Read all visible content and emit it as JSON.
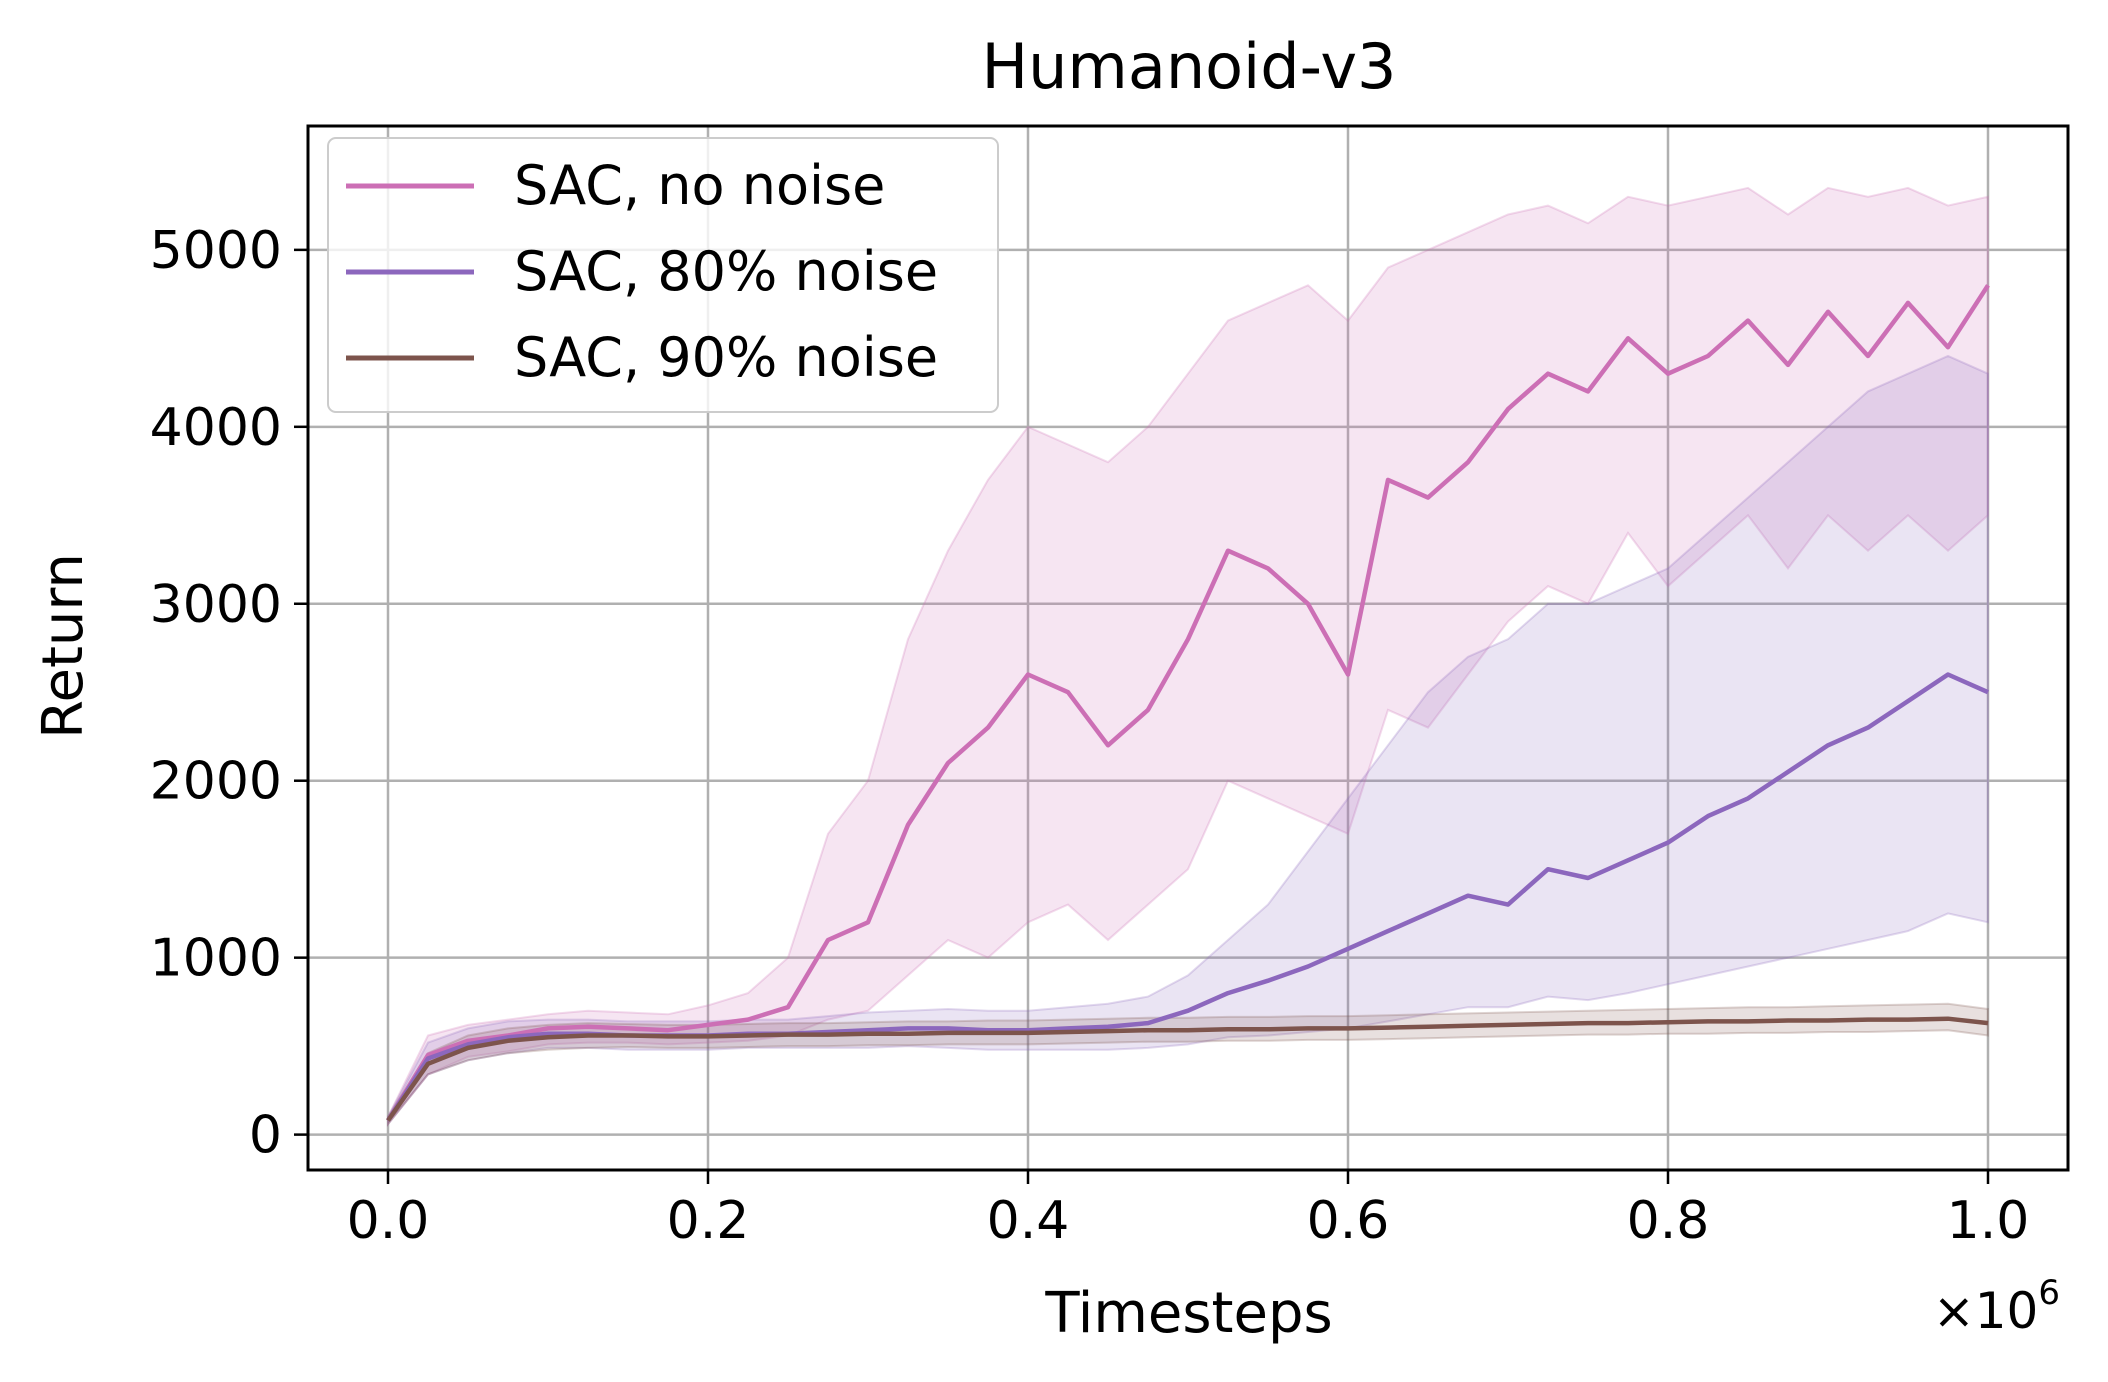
{
  "chart_data": {
    "type": "line",
    "title": "Humanoid-v3",
    "xlabel": "Timesteps",
    "ylabel": "Return",
    "x_scale_label": "×10",
    "x_scale_exponent": "6",
    "xlim": [
      -0.05,
      1.05
    ],
    "ylim": [
      -200,
      5700
    ],
    "xticks": [
      0.0,
      0.2,
      0.4,
      0.6,
      0.8,
      1.0
    ],
    "xtick_labels": [
      "0.0",
      "0.2",
      "0.4",
      "0.6",
      "0.8",
      "1.0"
    ],
    "yticks": [
      0,
      1000,
      2000,
      3000,
      4000,
      5000
    ],
    "ytick_labels": [
      "0",
      "1000",
      "2000",
      "3000",
      "4000",
      "5000"
    ],
    "grid": true,
    "legend_position": "top-left",
    "series": [
      {
        "name": "SAC, no noise",
        "color": "#cc6fb5",
        "x": [
          0.0,
          0.025,
          0.05,
          0.075,
          0.1,
          0.125,
          0.15,
          0.175,
          0.2,
          0.225,
          0.25,
          0.275,
          0.3,
          0.325,
          0.35,
          0.375,
          0.4,
          0.425,
          0.45,
          0.475,
          0.5,
          0.525,
          0.55,
          0.575,
          0.6,
          0.625,
          0.65,
          0.675,
          0.7,
          0.725,
          0.75,
          0.775,
          0.8,
          0.825,
          0.85,
          0.875,
          0.9,
          0.925,
          0.95,
          0.975,
          1.0
        ],
        "mean": [
          80,
          450,
          530,
          560,
          600,
          610,
          600,
          590,
          620,
          650,
          720,
          1100,
          1200,
          1750,
          2100,
          2300,
          2600,
          2500,
          2200,
          2400,
          2800,
          3300,
          3200,
          3000,
          2600,
          3700,
          3600,
          3800,
          4100,
          4300,
          4200,
          4500,
          4300,
          4400,
          4600,
          4350,
          4650,
          4400,
          4700,
          4450,
          4800
        ],
        "upper": [
          100,
          560,
          620,
          650,
          680,
          700,
          690,
          680,
          730,
          800,
          1000,
          1700,
          2000,
          2800,
          3300,
          3700,
          4000,
          3900,
          3800,
          4000,
          4300,
          4600,
          4700,
          4800,
          4600,
          4900,
          5000,
          5100,
          5200,
          5250,
          5150,
          5300,
          5250,
          5300,
          5350,
          5200,
          5350,
          5300,
          5350,
          5250,
          5300
        ],
        "lower": [
          60,
          340,
          440,
          470,
          510,
          520,
          520,
          510,
          520,
          530,
          560,
          650,
          700,
          900,
          1100,
          1000,
          1200,
          1300,
          1100,
          1300,
          1500,
          2000,
          1900,
          1800,
          1700,
          2400,
          2300,
          2600,
          2900,
          3100,
          3000,
          3400,
          3100,
          3300,
          3500,
          3200,
          3500,
          3300,
          3500,
          3300,
          3500
        ]
      },
      {
        "name": "SAC, 80% noise",
        "color": "#8c67bd",
        "x": [
          0.0,
          0.025,
          0.05,
          0.075,
          0.1,
          0.125,
          0.15,
          0.175,
          0.2,
          0.225,
          0.25,
          0.275,
          0.3,
          0.325,
          0.35,
          0.375,
          0.4,
          0.425,
          0.45,
          0.475,
          0.5,
          0.525,
          0.55,
          0.575,
          0.6,
          0.625,
          0.65,
          0.675,
          0.7,
          0.725,
          0.75,
          0.775,
          0.8,
          0.825,
          0.85,
          0.875,
          0.9,
          0.925,
          0.95,
          0.975,
          1.0
        ],
        "mean": [
          80,
          430,
          510,
          550,
          570,
          570,
          560,
          560,
          560,
          570,
          570,
          580,
          590,
          600,
          600,
          590,
          590,
          600,
          610,
          630,
          700,
          800,
          870,
          950,
          1050,
          1150,
          1250,
          1350,
          1300,
          1500,
          1450,
          1550,
          1650,
          1800,
          1900,
          2050,
          2200,
          2300,
          2450,
          2600,
          2500
        ],
        "upper": [
          100,
          520,
          600,
          640,
          650,
          650,
          640,
          640,
          640,
          650,
          650,
          670,
          690,
          700,
          710,
          700,
          700,
          720,
          740,
          780,
          900,
          1100,
          1300,
          1600,
          1900,
          2200,
          2500,
          2700,
          2800,
          3000,
          3000,
          3100,
          3200,
          3400,
          3600,
          3800,
          4000,
          4200,
          4300,
          4400,
          4300
        ],
        "lower": [
          60,
          340,
          420,
          460,
          490,
          490,
          480,
          480,
          480,
          490,
          490,
          490,
          490,
          500,
          490,
          480,
          480,
          480,
          480,
          490,
          510,
          550,
          560,
          580,
          600,
          640,
          680,
          720,
          720,
          780,
          760,
          800,
          850,
          900,
          950,
          1000,
          1050,
          1100,
          1150,
          1250,
          1200
        ]
      },
      {
        "name": "SAC, 90% noise",
        "color": "#7d544c",
        "x": [
          0.0,
          0.025,
          0.05,
          0.075,
          0.1,
          0.125,
          0.15,
          0.175,
          0.2,
          0.225,
          0.25,
          0.275,
          0.3,
          0.325,
          0.35,
          0.375,
          0.4,
          0.425,
          0.45,
          0.475,
          0.5,
          0.525,
          0.55,
          0.575,
          0.6,
          0.625,
          0.65,
          0.675,
          0.7,
          0.725,
          0.75,
          0.775,
          0.8,
          0.825,
          0.85,
          0.875,
          0.9,
          0.925,
          0.95,
          0.975,
          1.0
        ],
        "mean": [
          80,
          400,
          490,
          530,
          550,
          560,
          560,
          555,
          555,
          560,
          565,
          565,
          570,
          570,
          575,
          575,
          575,
          580,
          585,
          590,
          590,
          595,
          595,
          600,
          600,
          605,
          610,
          615,
          620,
          625,
          630,
          630,
          635,
          640,
          640,
          645,
          645,
          650,
          650,
          655,
          630
        ],
        "upper": [
          100,
          460,
          560,
          600,
          620,
          630,
          625,
          620,
          620,
          625,
          630,
          630,
          635,
          640,
          640,
          645,
          645,
          650,
          655,
          660,
          660,
          665,
          665,
          670,
          670,
          675,
          680,
          685,
          690,
          695,
          700,
          705,
          710,
          715,
          720,
          720,
          725,
          730,
          735,
          740,
          710
        ],
        "lower": [
          60,
          340,
          420,
          460,
          480,
          490,
          495,
          490,
          490,
          495,
          500,
          500,
          505,
          505,
          510,
          510,
          510,
          515,
          520,
          525,
          525,
          530,
          530,
          535,
          535,
          540,
          545,
          550,
          555,
          560,
          565,
          565,
          570,
          570,
          575,
          575,
          580,
          580,
          585,
          590,
          560
        ]
      }
    ]
  }
}
